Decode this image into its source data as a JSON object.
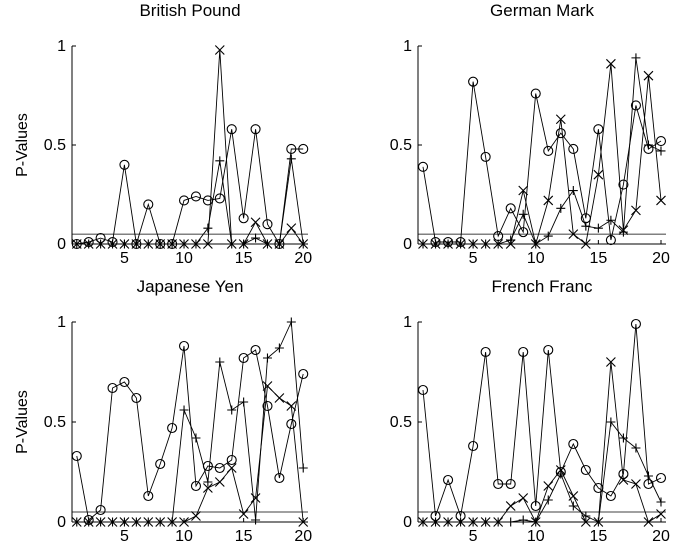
{
  "chart_data": [
    {
      "type": "line",
      "title": "British Pound",
      "ylabel": "P-Values",
      "xlim": [
        0.6,
        20.4
      ],
      "ylim": [
        0,
        1
      ],
      "xticks": [
        5,
        10,
        15,
        20
      ],
      "yticks": [
        0,
        0.5,
        1
      ],
      "reference_line": 0.05,
      "x": [
        1,
        2,
        3,
        4,
        5,
        6,
        7,
        8,
        9,
        10,
        11,
        12,
        13,
        14,
        15,
        16,
        17,
        18,
        19,
        20
      ],
      "series": [
        {
          "marker": "circle",
          "values": [
            0.0,
            0.01,
            0.03,
            0.01,
            0.4,
            0.0,
            0.2,
            0.0,
            0.0,
            0.22,
            0.24,
            0.22,
            0.23,
            0.58,
            0.13,
            0.58,
            0.1,
            0.0,
            0.48,
            0.48
          ]
        },
        {
          "marker": "plus",
          "values": [
            0.0,
            0.0,
            0.0,
            0.0,
            0.0,
            0.0,
            0.0,
            0.0,
            0.0,
            0.0,
            0.0,
            0.08,
            0.42,
            0.0,
            0.0,
            0.03,
            0.0,
            0.0,
            0.43,
            0.0
          ]
        },
        {
          "marker": "cross",
          "values": [
            0.0,
            0.0,
            0.0,
            0.0,
            0.0,
            0.0,
            0.0,
            0.0,
            0.0,
            0.0,
            0.0,
            0.0,
            0.98,
            0.0,
            0.0,
            0.11,
            0.0,
            0.0,
            0.08,
            0.0
          ]
        }
      ]
    },
    {
      "type": "line",
      "title": "German Mark",
      "ylabel": "",
      "xlim": [
        0.6,
        20.4
      ],
      "ylim": [
        0,
        1
      ],
      "xticks": [
        5,
        10,
        15,
        20
      ],
      "yticks": [
        0,
        0.5,
        1
      ],
      "reference_line": 0.05,
      "x": [
        1,
        2,
        3,
        4,
        5,
        6,
        7,
        8,
        9,
        10,
        11,
        12,
        13,
        14,
        15,
        16,
        17,
        18,
        19,
        20
      ],
      "series": [
        {
          "marker": "circle",
          "values": [
            0.39,
            0.01,
            0.01,
            0.01,
            0.82,
            0.44,
            0.04,
            0.18,
            0.06,
            0.76,
            0.47,
            0.56,
            0.48,
            0.13,
            0.58,
            0.02,
            0.3,
            0.7,
            0.48,
            0.52
          ]
        },
        {
          "marker": "plus",
          "values": [
            0.0,
            0.0,
            0.0,
            0.0,
            0.0,
            0.0,
            0.0,
            0.02,
            0.15,
            0.0,
            0.04,
            0.18,
            0.27,
            0.09,
            0.08,
            0.12,
            0.06,
            0.94,
            0.5,
            0.47
          ]
        },
        {
          "marker": "cross",
          "values": [
            0.0,
            0.0,
            0.0,
            0.0,
            0.0,
            0.0,
            0.0,
            0.0,
            0.27,
            0.0,
            0.22,
            0.63,
            0.05,
            0.0,
            0.35,
            0.91,
            0.07,
            0.17,
            0.85,
            0.22
          ]
        }
      ]
    },
    {
      "type": "line",
      "title": "Japanese Yen",
      "ylabel": "P-Values",
      "xlim": [
        0.6,
        20.4
      ],
      "ylim": [
        0,
        1
      ],
      "xticks": [
        5,
        10,
        15,
        20
      ],
      "yticks": [
        0,
        0.5,
        1
      ],
      "reference_line": 0.05,
      "x": [
        1,
        2,
        3,
        4,
        5,
        6,
        7,
        8,
        9,
        10,
        11,
        12,
        13,
        14,
        15,
        16,
        17,
        18,
        19,
        20
      ],
      "series": [
        {
          "marker": "circle",
          "values": [
            0.33,
            0.01,
            0.06,
            0.67,
            0.7,
            0.62,
            0.13,
            0.29,
            0.47,
            0.88,
            0.18,
            0.28,
            0.27,
            0.31,
            0.82,
            0.86,
            0.58,
            0.22,
            0.49,
            0.74
          ]
        },
        {
          "marker": "plus",
          "values": [
            0.0,
            0.0,
            0.0,
            0.0,
            0.0,
            0.0,
            0.0,
            0.0,
            0.0,
            0.56,
            0.42,
            0.2,
            0.8,
            0.56,
            0.6,
            0.01,
            0.82,
            0.87,
            1.0,
            0.27
          ]
        },
        {
          "marker": "cross",
          "values": [
            0.0,
            0.0,
            0.0,
            0.0,
            0.0,
            0.0,
            0.0,
            0.0,
            0.0,
            0.0,
            0.03,
            0.17,
            0.2,
            0.27,
            0.04,
            0.12,
            0.68,
            0.62,
            0.58,
            0.0
          ]
        }
      ]
    },
    {
      "type": "line",
      "title": "French Franc",
      "ylabel": "",
      "xlim": [
        0.6,
        20.4
      ],
      "ylim": [
        0,
        1
      ],
      "xticks": [
        5,
        10,
        15,
        20
      ],
      "yticks": [
        0,
        0.5,
        1
      ],
      "reference_line": 0.05,
      "x": [
        1,
        2,
        3,
        4,
        5,
        6,
        7,
        8,
        9,
        10,
        11,
        12,
        13,
        14,
        15,
        16,
        17,
        18,
        19,
        20
      ],
      "series": [
        {
          "marker": "circle",
          "values": [
            0.66,
            0.03,
            0.21,
            0.03,
            0.38,
            0.85,
            0.19,
            0.19,
            0.85,
            0.08,
            0.86,
            0.25,
            0.39,
            0.26,
            0.17,
            0.13,
            0.24,
            0.99,
            0.19,
            0.22
          ]
        },
        {
          "marker": "plus",
          "values": [
            0.0,
            0.0,
            0.0,
            0.0,
            0.0,
            0.0,
            0.0,
            0.0,
            0.01,
            0.0,
            0.11,
            0.24,
            0.08,
            0.03,
            0.0,
            0.5,
            0.42,
            0.37,
            0.23,
            0.1
          ]
        },
        {
          "marker": "cross",
          "values": [
            0.0,
            0.0,
            0.0,
            0.0,
            0.0,
            0.0,
            0.0,
            0.08,
            0.12,
            0.0,
            0.18,
            0.26,
            0.13,
            0.0,
            0.0,
            0.8,
            0.21,
            0.19,
            0.0,
            0.04
          ]
        }
      ]
    }
  ]
}
